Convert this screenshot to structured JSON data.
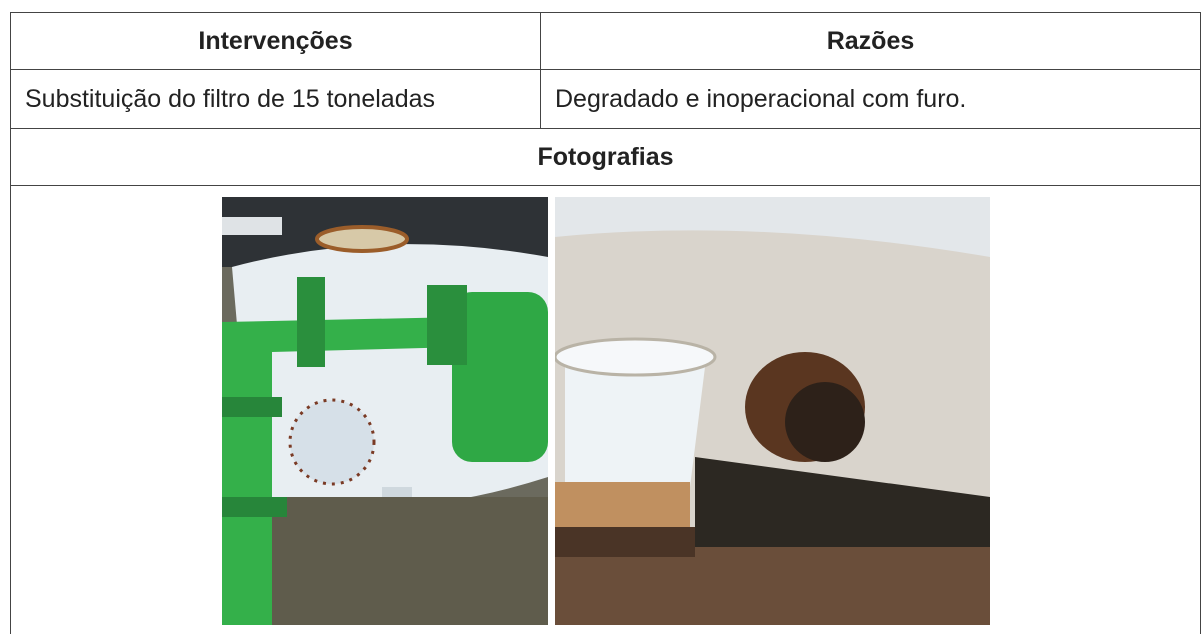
{
  "table": {
    "headers": [
      "Intervenções",
      "Razões"
    ],
    "rows": [
      [
        "Substituição do filtro de 15 toneladas",
        "Degradado e inoperacional com furo."
      ]
    ],
    "photos_heading": "Fotografias"
  }
}
